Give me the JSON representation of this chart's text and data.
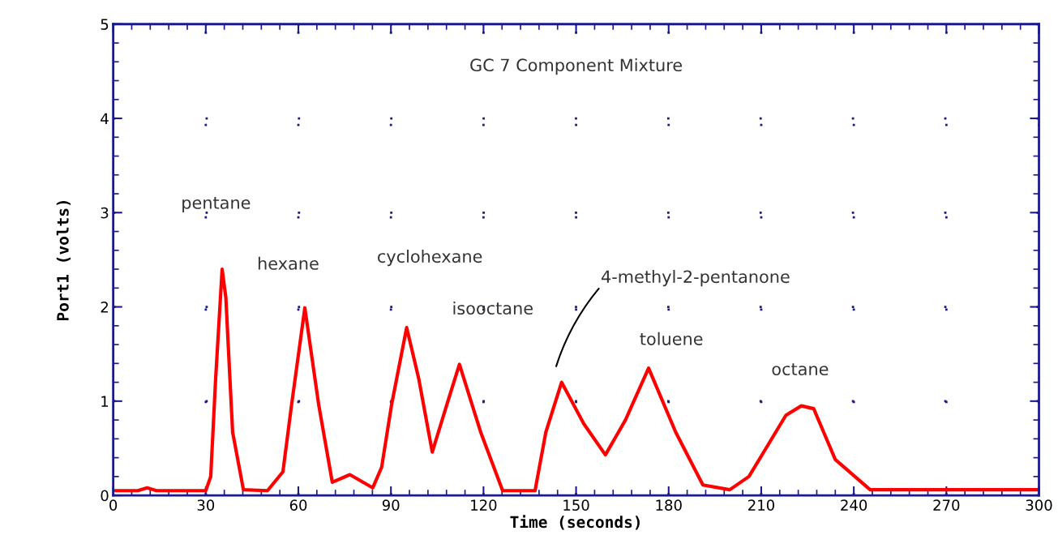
{
  "chart_data": {
    "type": "line",
    "title": "GC 7 Component Mixture",
    "xlabel": "Time (seconds)",
    "ylabel": "Port1 (volts)",
    "x": [
      0,
      8,
      11,
      14,
      30,
      31.6,
      33.2,
      35.3,
      36.5,
      38.7,
      42.2,
      50,
      55,
      57.8,
      62.1,
      66.6,
      71.0,
      76.7,
      84.1,
      87,
      90.2,
      95.1,
      99.0,
      103.4,
      108,
      112.2,
      119.1,
      126.2,
      136.7,
      140.2,
      145.3,
      152.5,
      159.5,
      166,
      173.5,
      182.3,
      191.1,
      199.8,
      206,
      212.1,
      218,
      223,
      227,
      234,
      245.3,
      260,
      300
    ],
    "series": [
      {
        "color": "#ff0000",
        "values": [
          0.05,
          0.05,
          0.08,
          0.05,
          0.05,
          0.2,
          1.24,
          2.4,
          2.1,
          0.67,
          0.06,
          0.05,
          0.25,
          0.96,
          1.99,
          0.96,
          0.14,
          0.22,
          0.08,
          0.3,
          0.96,
          1.78,
          1.24,
          0.46,
          0.95,
          1.39,
          0.67,
          0.05,
          0.05,
          0.67,
          1.2,
          0.76,
          0.43,
          0.8,
          1.35,
          0.67,
          0.11,
          0.06,
          0.2,
          0.53,
          0.85,
          0.95,
          0.92,
          0.38,
          0.06,
          0.06,
          0.06
        ]
      }
    ],
    "xlim": [
      0,
      300
    ],
    "xticks": [
      0,
      30,
      60,
      90,
      120,
      150,
      180,
      210,
      240,
      270,
      300
    ],
    "ylim": [
      0,
      5
    ],
    "yticks": [
      0,
      1,
      2,
      3,
      4,
      5
    ],
    "grid": true,
    "line_style": "solid",
    "marker": "none",
    "annotations": [
      "pentane",
      "hexane",
      "cyclohexane",
      "isooctane",
      "4-methyl-2-pentanone",
      "toluene",
      "octane"
    ]
  }
}
